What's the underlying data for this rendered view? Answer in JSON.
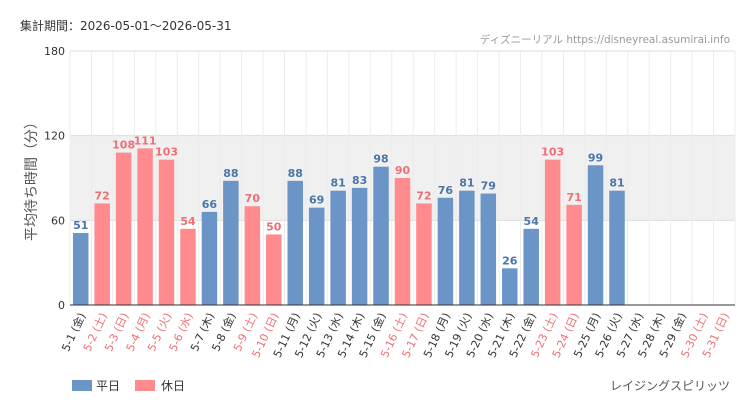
{
  "header": {
    "period_label": "集計期間：2026-05-01〜2026-05-31",
    "source_label": "ディズニーリアル https://disneyreal.asumirai.info"
  },
  "footer": {
    "attraction": "レイジングスピリッツ"
  },
  "colors": {
    "weekday": "#6b95c6",
    "holiday": "#ff8b8e",
    "weekday_text": "#4a76a8",
    "holiday_text": "#ee6f74",
    "band": "#f0f0f0"
  },
  "chart_data": {
    "type": "bar",
    "ylabel": "平均待ち時間（分）",
    "ylim": [
      0,
      180
    ],
    "yticks": [
      0,
      60,
      120,
      180
    ],
    "highlight_band": [
      60,
      120
    ],
    "grid": true,
    "legend_position": "bottom-left",
    "categories": [
      "5-1 (金)",
      "5-2 (土)",
      "5-3 (日)",
      "5-4 (月)",
      "5-5 (火)",
      "5-6 (水)",
      "5-7 (木)",
      "5-8 (金)",
      "5-9 (土)",
      "5-10 (日)",
      "5-11 (月)",
      "5-12 (火)",
      "5-13 (水)",
      "5-14 (木)",
      "5-15 (金)",
      "5-16 (土)",
      "5-17 (日)",
      "5-18 (月)",
      "5-19 (火)",
      "5-20 (水)",
      "5-21 (木)",
      "5-22 (金)",
      "5-23 (土)",
      "5-24 (日)",
      "5-25 (月)",
      "5-26 (火)",
      "5-27 (水)",
      "5-28 (木)",
      "5-29 (金)",
      "5-30 (土)",
      "5-31 (日)"
    ],
    "values": [
      51,
      72,
      108,
      111,
      103,
      54,
      66,
      88,
      70,
      50,
      88,
      69,
      81,
      83,
      98,
      90,
      72,
      76,
      81,
      79,
      26,
      54,
      103,
      71,
      99,
      81,
      null,
      null,
      null,
      null,
      null
    ],
    "day_type": [
      "weekday",
      "holiday",
      "holiday",
      "holiday",
      "holiday",
      "holiday",
      "weekday",
      "weekday",
      "holiday",
      "holiday",
      "weekday",
      "weekday",
      "weekday",
      "weekday",
      "weekday",
      "holiday",
      "holiday",
      "weekday",
      "weekday",
      "weekday",
      "weekday",
      "weekday",
      "holiday",
      "holiday",
      "weekday",
      "weekday",
      "weekday",
      "weekday",
      "weekday",
      "holiday",
      "holiday"
    ],
    "legend": [
      {
        "key": "weekday",
        "label": "平日"
      },
      {
        "key": "holiday",
        "label": "休日"
      }
    ]
  }
}
